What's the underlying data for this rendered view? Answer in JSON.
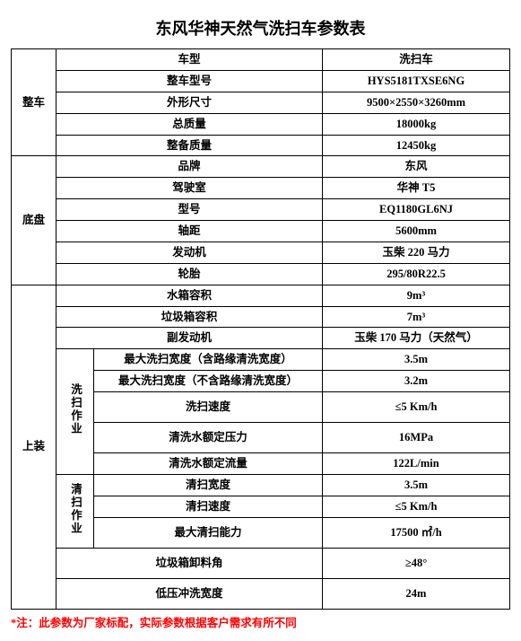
{
  "title": "东风华神天然气洗扫车参数表",
  "note": "*注：此参数为厂家标配，实际参数根据客户需求有所不同",
  "colors": {
    "border": "#000000",
    "note": "#ff0000",
    "background": "#ffffff"
  },
  "sections": {
    "vehicle": {
      "group": "整车",
      "rows": [
        {
          "label": "车型",
          "value": "洗扫车"
        },
        {
          "label": "整车型号",
          "value": "HYS5181TXSE6NG"
        },
        {
          "label": "外形尺寸",
          "value": "9500×2550×3260mm"
        },
        {
          "label": "总质量",
          "value": "18000kg"
        },
        {
          "label": "整备质量",
          "value": "12450kg"
        }
      ]
    },
    "chassis": {
      "group": "底盘",
      "rows": [
        {
          "label": "品牌",
          "value": "东风"
        },
        {
          "label": "驾驶室",
          "value": "华神 T5"
        },
        {
          "label": "型号",
          "value": "EQ1180GL6NJ"
        },
        {
          "label": "轴距",
          "value": "5600mm"
        },
        {
          "label": "发动机",
          "value": "玉柴 220 马力"
        },
        {
          "label": "轮胎",
          "value": "295/80R22.5"
        }
      ]
    },
    "upper": {
      "group": "上装",
      "top": [
        {
          "label": "水箱容积",
          "value": "9m³"
        },
        {
          "label": "垃圾箱容积",
          "value": "7m³"
        },
        {
          "label": "副发动机",
          "value": "玉柴 170 马力（天然气）"
        }
      ],
      "sweep": {
        "group": "洗扫作业",
        "rows": [
          {
            "label": "最大洗扫宽度（含路缘清洗宽度）",
            "value": "3.5m"
          },
          {
            "label": "最大洗扫宽度（不含路缘清洗宽度）",
            "value": "3.2m"
          },
          {
            "label": "洗扫速度",
            "value": "≤5 Km/h"
          },
          {
            "label": "清洗水额定压力",
            "value": "16MPa"
          },
          {
            "label": "清洗水额定流量",
            "value": "122L/min"
          }
        ]
      },
      "clean": {
        "group": "清扫作业",
        "rows": [
          {
            "label": "清扫宽度",
            "value": "3.5m"
          },
          {
            "label": "清扫速度",
            "value": "≤5 Km/h"
          },
          {
            "label": "最大清扫能力",
            "value": "17500 ㎡/h"
          }
        ]
      },
      "bottom": [
        {
          "label": "垃圾箱卸料角",
          "value": "≥48°"
        },
        {
          "label": "低压冲洗宽度",
          "value": "24m"
        }
      ]
    }
  }
}
